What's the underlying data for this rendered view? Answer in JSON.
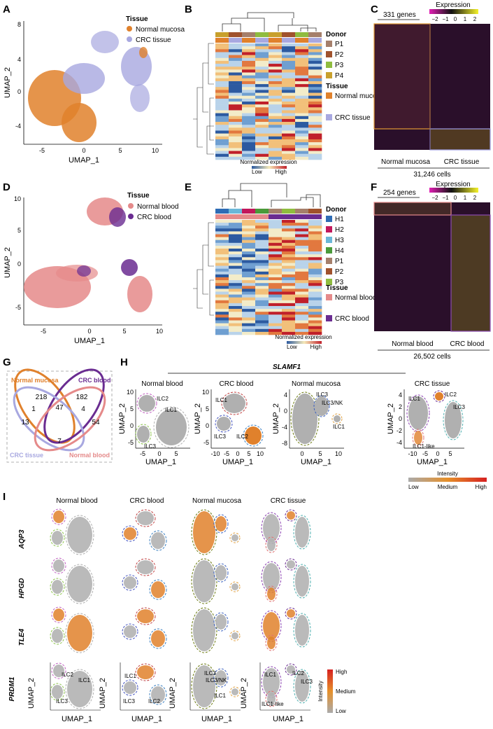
{
  "figure": {
    "panels": {
      "A": {
        "letter": "A",
        "legend_title": "Tissue",
        "legend": [
          "Normal mucosa",
          "CRC tissue"
        ],
        "colors": [
          "#e0812c",
          "#a8a8e0"
        ],
        "xlabel": "UMAP_1",
        "ylabel": "UMAP_2",
        "xticks": [
          "-5",
          "0",
          "5",
          "10"
        ],
        "yticks": [
          "8",
          "4",
          "0",
          "-4"
        ]
      },
      "B": {
        "letter": "B",
        "donor_title": "Donor",
        "donors": [
          "P1",
          "P2",
          "P3",
          "P4"
        ],
        "donor_colors": [
          "#a57f6b",
          "#a0522d",
          "#8fbc3f",
          "#c8a02c"
        ],
        "tissue_title": "Tissue",
        "tissues": [
          "Normal mucosa",
          "CRC tissue"
        ],
        "tissue_colors": [
          "#e0812c",
          "#a8a8e0"
        ],
        "scale_label": "Normalized expression",
        "low": "Low",
        "high": "High"
      },
      "C": {
        "letter": "C",
        "gene_count": "331 genes",
        "expression_title": "Expression",
        "scale_ticks": [
          "−2",
          "−1",
          "0",
          "1",
          "2"
        ],
        "groups": [
          "Normal mucosa",
          "CRC tissue"
        ],
        "cells": "31,246 cells"
      },
      "D": {
        "letter": "D",
        "legend_title": "Tissue",
        "legend": [
          "Normal blood",
          "CRC blood"
        ],
        "colors": [
          "#e58a8a",
          "#6a2c91"
        ],
        "xlabel": "UMAP_1",
        "ylabel": "UMAP_2",
        "xticks": [
          "-5",
          "0",
          "5",
          "10"
        ],
        "yticks": [
          "10",
          "5",
          "0",
          "-5"
        ]
      },
      "E": {
        "letter": "E",
        "donor_title": "Donor",
        "donors": [
          "H1",
          "H2",
          "H3",
          "H4",
          "P1",
          "P2",
          "P3"
        ],
        "donor_colors": [
          "#2e6cb5",
          "#c2185b",
          "#6bb7d8",
          "#4a9a3a",
          "#a57f6b",
          "#a0522d",
          "#8fbc3f"
        ],
        "tissue_title": "Tissue",
        "tissues": [
          "Normal blood",
          "CRC blood"
        ],
        "tissue_colors": [
          "#e58a8a",
          "#6a2c91"
        ],
        "scale_label": "Normalized expression",
        "low": "Low",
        "high": "High"
      },
      "F": {
        "letter": "F",
        "gene_count": "254 genes",
        "expression_title": "Expression",
        "scale_ticks": [
          "−2",
          "−1",
          "0",
          "1",
          "2"
        ],
        "groups": [
          "Normal blood",
          "CRC blood"
        ],
        "cells": "26,502 cells"
      },
      "G": {
        "letter": "G",
        "sets": [
          "Normal mucosa",
          "CRC blood",
          "CRC tissue",
          "Normal blood"
        ],
        "set_colors": [
          "#e0812c",
          "#6a2c91",
          "#a8a8e0",
          "#e58a8a"
        ],
        "counts": [
          "218",
          "182",
          "47",
          "1",
          "4",
          "13",
          "54",
          "7"
        ]
      },
      "H": {
        "letter": "H",
        "gene": "SLAMF1",
        "titles": [
          "Normal blood",
          "CRC blood",
          "Normal mucosa",
          "CRC tissue"
        ],
        "xlabel": "UMAP_1",
        "ylabel": "UMAP_2",
        "labels_nb": [
          "ILC2",
          "ILC1",
          "ILC3"
        ],
        "labels_cb": [
          "ILC1",
          "ILC3",
          "ILC2"
        ],
        "labels_nm": [
          "ILC3",
          "ILC3/NK",
          "ILC1"
        ],
        "labels_ct": [
          "ILC1",
          "ILC2",
          "ILC3",
          "ILC1-like"
        ],
        "ticks_nb_x": [
          "-5",
          "0",
          "5"
        ],
        "ticks_nb_y": [
          "10",
          "5",
          "0",
          "-5"
        ],
        "ticks_cb_x": [
          "-10",
          "-5",
          "0",
          "5",
          "10"
        ],
        "ticks_cb_y": [
          "10",
          "5",
          "0",
          "-5"
        ],
        "ticks_nm_x": [
          "0",
          "5",
          "10"
        ],
        "ticks_nm_y": [
          "4",
          "0",
          "-4",
          "-8"
        ],
        "ticks_ct_x": [
          "-10",
          "-5",
          "0",
          "5"
        ],
        "ticks_ct_y": [
          "4",
          "2",
          "0",
          "-2",
          "-4"
        ],
        "intensity_title": "Intensity",
        "intensity_labels": [
          "Low",
          "Medium",
          "High"
        ]
      },
      "I": {
        "letter": "I",
        "titles": [
          "Normal blood",
          "CRC blood",
          "Normal mucosa",
          "CRC tissue"
        ],
        "genes": [
          "AQP3",
          "HPGD",
          "TLE4",
          "PRDM1"
        ],
        "xlabel": "UMAP_1",
        "ylabel": "UMAP_2",
        "intensity_title": "Intensity",
        "intensity_labels": [
          "High",
          "Medium",
          "Low"
        ]
      }
    }
  }
}
